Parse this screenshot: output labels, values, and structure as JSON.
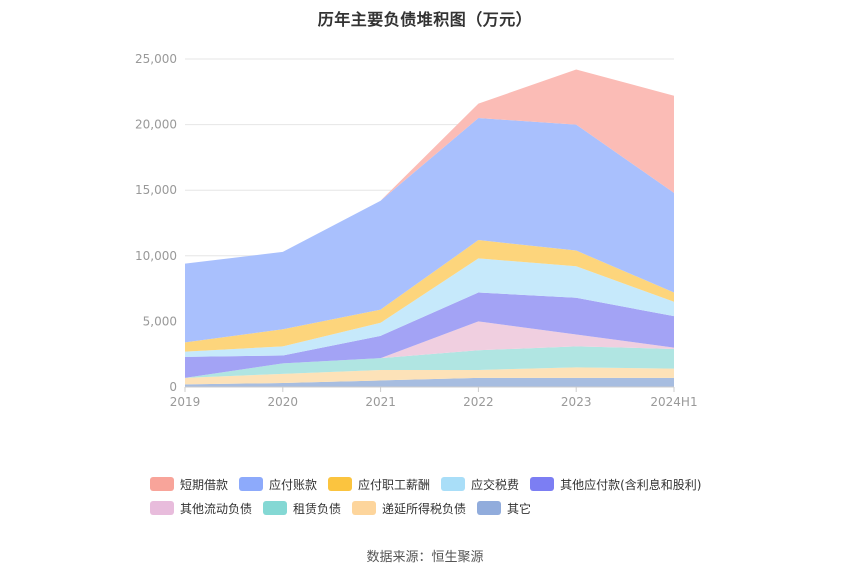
{
  "chart_data": {
    "type": "area",
    "stacked": true,
    "title": "历年主要负债堆积图（万元）",
    "categories": [
      "2019",
      "2020",
      "2021",
      "2022",
      "2023",
      "2024H1"
    ],
    "yticks": [
      "0",
      "5,000",
      "10,000",
      "15,000",
      "20,000",
      "25,000"
    ],
    "ylim": [
      0,
      25000
    ],
    "grid": true,
    "legend_position": "bottom",
    "series": [
      {
        "name": "其它",
        "color": "#a7bde0",
        "values": [
          200,
          300,
          500,
          700,
          700,
          700
        ]
      },
      {
        "name": "递延所得税负债",
        "color": "#fde2b8",
        "values": [
          500,
          700,
          800,
          600,
          800,
          700
        ]
      },
      {
        "name": "租赁负债",
        "color": "#b0e5e2",
        "values": [
          0,
          800,
          900,
          1500,
          1600,
          1500
        ]
      },
      {
        "name": "其他流动负债",
        "color": "#f0cfe0",
        "values": [
          0,
          0,
          0,
          2200,
          900,
          100
        ]
      },
      {
        "name": "其他应付款(含利息和股利)",
        "color": "#a3a3f5",
        "values": [
          1600,
          600,
          1700,
          2200,
          2800,
          2400
        ]
      },
      {
        "name": "应交税费",
        "color": "#c6e9fb",
        "values": [
          400,
          700,
          1000,
          2600,
          2400,
          1100
        ]
      },
      {
        "name": "应付职工薪酬",
        "color": "#fdd57c",
        "values": [
          700,
          1300,
          1000,
          1400,
          1200,
          700
        ]
      },
      {
        "name": "应付账款",
        "color": "#a9c0fd",
        "values": [
          6000,
          5900,
          8300,
          9300,
          9600,
          7600
        ]
      },
      {
        "name": "短期借款",
        "color": "#fbbcb6",
        "values": [
          0,
          0,
          0,
          1100,
          4200,
          7400
        ]
      }
    ]
  },
  "legend": {
    "rows": [
      [
        {
          "label": "短期借款",
          "color": "#f8a49a"
        },
        {
          "label": "应付账款",
          "color": "#8daafb"
        },
        {
          "label": "应付职工薪酬",
          "color": "#fbc43f"
        },
        {
          "label": "应交税费",
          "color": "#a9def8"
        },
        {
          "label": "其他应付款(含利息和股利)",
          "color": "#7c7ef3"
        }
      ],
      [
        {
          "label": "其他流动负债",
          "color": "#e8bcdc"
        },
        {
          "label": "租赁负债",
          "color": "#84d8d4"
        },
        {
          "label": "递延所得税负债",
          "color": "#fdd59c"
        },
        {
          "label": "其它",
          "color": "#91acdc"
        }
      ]
    ]
  },
  "source": "数据来源：恒生聚源"
}
